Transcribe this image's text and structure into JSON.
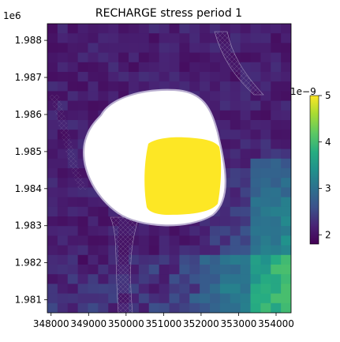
{
  "chart_data": {
    "type": "heatmap",
    "title": "RECHARGE stress period 1",
    "xlabel": "",
    "ylabel": "",
    "xlim": [
      347900,
      354400
    ],
    "ylim": [
      1980650,
      1988450
    ],
    "x_ticks": [
      348000,
      349000,
      350000,
      351000,
      352000,
      353000,
      354000
    ],
    "x_tick_labels": [
      "348000",
      "349000",
      "350000",
      "351000",
      "352000",
      "353000",
      "354000"
    ],
    "y_ticks": [
      1981000,
      1982000,
      1983000,
      1984000,
      1985000,
      1986000,
      1987000,
      1988000
    ],
    "y_tick_labels": [
      "1.981",
      "1.982",
      "1.983",
      "1.984",
      "1.985",
      "1.986",
      "1.987",
      "1.988"
    ],
    "y_offset_label": "1e6",
    "colormap": "viridis",
    "colorbar": {
      "vmin": 1.8,
      "vmax": 5.0,
      "ticks": [
        2,
        3,
        4,
        5
      ],
      "tick_labels": [
        "2",
        "3",
        "4",
        "5"
      ],
      "offset_label": "1e−9"
    },
    "grid": false,
    "features": {
      "high_recharge_zone_value": 5.0,
      "background_value_range": [
        1.8,
        3.3
      ],
      "inactive_lake_region": "white (no data)"
    }
  }
}
